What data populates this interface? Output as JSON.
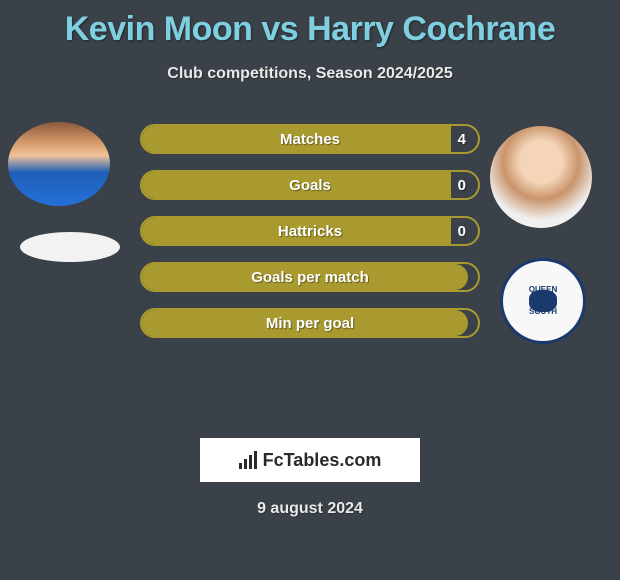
{
  "title": "Kevin Moon vs Harry Cochrane",
  "subtitle": "Club competitions, Season 2024/2025",
  "date": "9 august 2024",
  "watermark": "FcTables.com",
  "colors": {
    "background": "#3b4148",
    "title_color": "#7ecfe0",
    "text_color": "#e8e8e8",
    "bar_fill": "#a89a2f",
    "bar_border": "#a89a2f",
    "bar_text": "#ffffff"
  },
  "players": {
    "left_name": "Kevin Moon",
    "right_name": "Harry Cochrane",
    "right_club": "Queen of the South"
  },
  "stats": [
    {
      "label": "Matches",
      "value": "4",
      "fill_pct": 92
    },
    {
      "label": "Goals",
      "value": "0",
      "fill_pct": 92
    },
    {
      "label": "Hattricks",
      "value": "0",
      "fill_pct": 92
    },
    {
      "label": "Goals per match",
      "value": "",
      "fill_pct": 97
    },
    {
      "label": "Min per goal",
      "value": "",
      "fill_pct": 97
    }
  ]
}
